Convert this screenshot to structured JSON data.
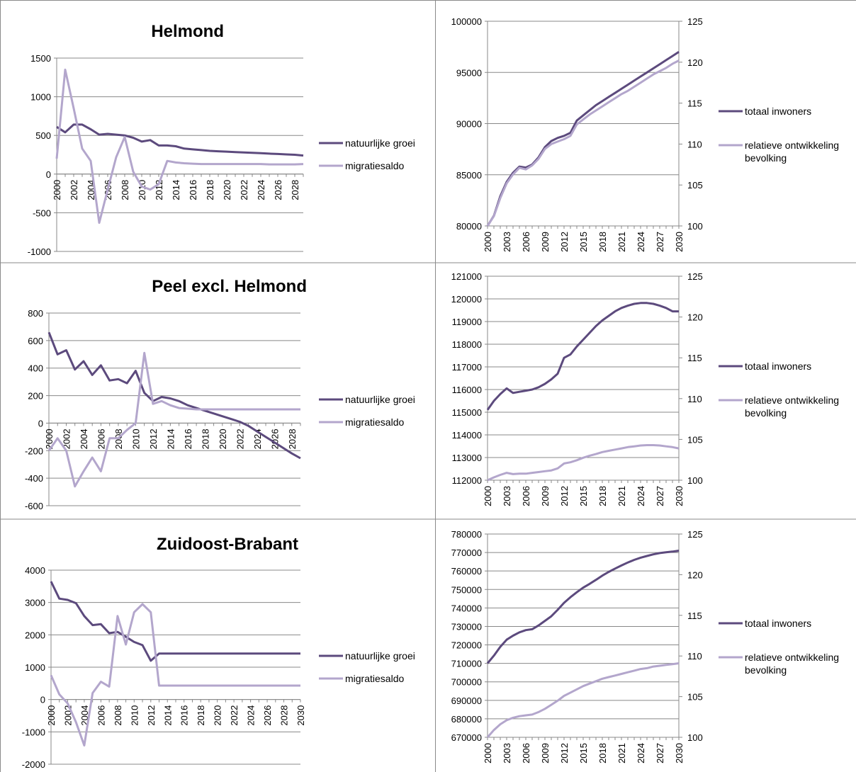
{
  "colors": {
    "dark": "#5c4a7d",
    "light": "#b3a6cc",
    "grid": "#888888",
    "border": "#8a8a8a"
  },
  "chart_data": [
    {
      "id": "helmond-growth",
      "type": "line",
      "title": "Helmond",
      "x": [
        2000,
        2001,
        2002,
        2003,
        2004,
        2005,
        2006,
        2007,
        2008,
        2009,
        2010,
        2011,
        2012,
        2013,
        2014,
        2015,
        2016,
        2017,
        2018,
        2019,
        2020,
        2021,
        2022,
        2023,
        2024,
        2025,
        2026,
        2027,
        2028,
        2029
      ],
      "xticks": [
        "2000",
        "2002",
        "2004",
        "2006",
        "2008",
        "2010",
        "2012",
        "2014",
        "2016",
        "2018",
        "2020",
        "2022",
        "2024",
        "2026",
        "2028"
      ],
      "ylim": [
        -1000,
        1500
      ],
      "yticks": [
        "-1000",
        "-500",
        "0",
        "500",
        "1000",
        "1500"
      ],
      "series": [
        {
          "name": "natuurlijke groei",
          "color": "dark",
          "values": [
            610,
            540,
            640,
            640,
            580,
            510,
            520,
            510,
            500,
            470,
            420,
            440,
            370,
            370,
            360,
            330,
            320,
            310,
            300,
            295,
            290,
            285,
            280,
            275,
            270,
            265,
            260,
            255,
            250,
            240
          ]
        },
        {
          "name": "migratiesaldo",
          "color": "light",
          "values": [
            200,
            1350,
            850,
            330,
            170,
            -630,
            -200,
            220,
            480,
            30,
            -160,
            -200,
            -130,
            170,
            150,
            140,
            135,
            130,
            130,
            130,
            130,
            130,
            130,
            130,
            130,
            125,
            125,
            125,
            125,
            130
          ]
        }
      ]
    },
    {
      "id": "helmond-pop",
      "type": "line",
      "x": [
        2000,
        2001,
        2002,
        2003,
        2004,
        2005,
        2006,
        2007,
        2008,
        2009,
        2010,
        2011,
        2012,
        2013,
        2014,
        2015,
        2016,
        2017,
        2018,
        2019,
        2020,
        2021,
        2022,
        2023,
        2024,
        2025,
        2026,
        2027,
        2028,
        2029,
        2030
      ],
      "xticks": [
        "2000",
        "2003",
        "2006",
        "2009",
        "2012",
        "2015",
        "2018",
        "2021",
        "2024",
        "2027",
        "2030"
      ],
      "ylim": [
        80000,
        100000
      ],
      "yticks": [
        "80000",
        "85000",
        "90000",
        "95000",
        "100000"
      ],
      "y2lim": [
        100,
        125
      ],
      "y2ticks": [
        "100",
        "105",
        "110",
        "115",
        "120",
        "125"
      ],
      "series": [
        {
          "name": "totaal inwoners",
          "axis": "left",
          "color": "dark",
          "values": [
            80000,
            81000,
            82900,
            84300,
            85200,
            85800,
            85700,
            86000,
            86700,
            87700,
            88300,
            88600,
            88800,
            89100,
            90300,
            90800,
            91300,
            91800,
            92200,
            92600,
            93000,
            93400,
            93800,
            94200,
            94600,
            95000,
            95400,
            95800,
            96200,
            96600,
            97000
          ]
        },
        {
          "name": "relatieve ontwikkeling bevolking",
          "axis": "right",
          "color": "light",
          "values": [
            100,
            101.2,
            103.4,
            105.2,
            106.3,
            107.1,
            106.9,
            107.4,
            108.2,
            109.4,
            110,
            110.3,
            110.6,
            111,
            112.4,
            113,
            113.6,
            114.1,
            114.6,
            115.1,
            115.6,
            116.1,
            116.5,
            117,
            117.5,
            118,
            118.5,
            118.9,
            119.3,
            119.8,
            120.2
          ]
        }
      ]
    },
    {
      "id": "peel-growth",
      "type": "line",
      "title": "Peel excl. Helmond",
      "x": [
        2000,
        2001,
        2002,
        2003,
        2004,
        2005,
        2006,
        2007,
        2008,
        2009,
        2010,
        2011,
        2012,
        2013,
        2014,
        2015,
        2016,
        2017,
        2018,
        2019,
        2020,
        2021,
        2022,
        2023,
        2024,
        2025,
        2026,
        2027,
        2028,
        2029
      ],
      "xticks": [
        "2000",
        "2002",
        "2004",
        "2006",
        "2008",
        "2010",
        "2012",
        "2014",
        "2016",
        "2018",
        "2020",
        "2022",
        "2024",
        "2026",
        "2028"
      ],
      "ylim": [
        -600,
        800
      ],
      "yticks": [
        "-600",
        "-400",
        "-200",
        "0",
        "200",
        "400",
        "600",
        "800"
      ],
      "series": [
        {
          "name": "natuurlijke groei",
          "color": "dark",
          "values": [
            660,
            500,
            530,
            390,
            450,
            350,
            420,
            310,
            320,
            290,
            380,
            220,
            160,
            190,
            180,
            160,
            130,
            110,
            90,
            70,
            50,
            30,
            10,
            -20,
            -60,
            -100,
            -140,
            -180,
            -220,
            -255
          ]
        },
        {
          "name": "migratiesaldo",
          "color": "light",
          "values": [
            -200,
            -110,
            -200,
            -460,
            -350,
            -250,
            -350,
            -110,
            -110,
            -50,
            0,
            510,
            140,
            160,
            130,
            110,
            105,
            100,
            100,
            100,
            100,
            100,
            100,
            100,
            100,
            100,
            100,
            100,
            100,
            100
          ]
        }
      ]
    },
    {
      "id": "peel-pop",
      "type": "line",
      "x": [
        2000,
        2001,
        2002,
        2003,
        2004,
        2005,
        2006,
        2007,
        2008,
        2009,
        2010,
        2011,
        2012,
        2013,
        2014,
        2015,
        2016,
        2017,
        2018,
        2019,
        2020,
        2021,
        2022,
        2023,
        2024,
        2025,
        2026,
        2027,
        2028,
        2029,
        2030
      ],
      "xticks": [
        "2000",
        "2003",
        "2006",
        "2009",
        "2012",
        "2015",
        "2018",
        "2021",
        "2024",
        "2027",
        "2030"
      ],
      "ylim": [
        112000,
        121000
      ],
      "yticks": [
        "112000",
        "113000",
        "114000",
        "115000",
        "116000",
        "117000",
        "118000",
        "119000",
        "120000",
        "121000"
      ],
      "y2lim": [
        100,
        125
      ],
      "y2ticks": [
        "100",
        "105",
        "110",
        "115",
        "120",
        "125"
      ],
      "series": [
        {
          "name": "totaal inwoners",
          "axis": "left",
          "color": "dark",
          "values": [
            115100,
            115500,
            115800,
            116050,
            115850,
            115900,
            115950,
            116000,
            116100,
            116250,
            116450,
            116700,
            117400,
            117550,
            117900,
            118200,
            118500,
            118800,
            119050,
            119250,
            119450,
            119600,
            119700,
            119780,
            119820,
            119820,
            119780,
            119700,
            119600,
            119450,
            119450
          ]
        },
        {
          "name": "relatieve ontwikkeling bevolking",
          "axis": "right",
          "color": "light",
          "values": [
            100,
            100.35,
            100.65,
            100.9,
            100.75,
            100.8,
            100.8,
            100.9,
            101,
            101.1,
            101.2,
            101.45,
            102.05,
            102.2,
            102.45,
            102.75,
            103,
            103.2,
            103.45,
            103.6,
            103.75,
            103.9,
            104.05,
            104.15,
            104.25,
            104.3,
            104.3,
            104.25,
            104.15,
            104.05,
            103.9
          ]
        }
      ]
    },
    {
      "id": "zob-growth",
      "type": "line",
      "title": "Zuidoost-Brabant",
      "x": [
        2000,
        2001,
        2002,
        2003,
        2004,
        2005,
        2006,
        2007,
        2008,
        2009,
        2010,
        2011,
        2012,
        2013,
        2014,
        2015,
        2016,
        2017,
        2018,
        2019,
        2020,
        2021,
        2022,
        2023,
        2024,
        2025,
        2026,
        2027,
        2028,
        2029,
        2030
      ],
      "xticks": [
        "2000",
        "2002",
        "2004",
        "2006",
        "2008",
        "2010",
        "2012",
        "2014",
        "2016",
        "2018",
        "2020",
        "2022",
        "2024",
        "2026",
        "2028",
        "2030"
      ],
      "ylim": [
        -2000,
        4000
      ],
      "yticks": [
        "-2000",
        "-1000",
        "0",
        "1000",
        "2000",
        "3000",
        "4000"
      ],
      "series": [
        {
          "name": "natuurlijke groei",
          "color": "dark",
          "values": [
            3650,
            3120,
            3080,
            2980,
            2580,
            2300,
            2330,
            2050,
            2090,
            1940,
            1780,
            1680,
            1200,
            1420,
            1420,
            1420,
            1420,
            1420,
            1420,
            1420,
            1420,
            1420,
            1420,
            1420,
            1420,
            1420,
            1420,
            1420,
            1420,
            1420,
            1420
          ]
        },
        {
          "name": "migratiesaldo",
          "color": "light",
          "values": [
            750,
            160,
            -120,
            -700,
            -1420,
            200,
            550,
            400,
            2580,
            1700,
            2700,
            2950,
            2700,
            430,
            430,
            430,
            430,
            430,
            430,
            430,
            430,
            430,
            430,
            430,
            430,
            430,
            430,
            430,
            430,
            430,
            430
          ]
        }
      ]
    },
    {
      "id": "zob-pop",
      "type": "line",
      "x": [
        2000,
        2001,
        2002,
        2003,
        2004,
        2005,
        2006,
        2007,
        2008,
        2009,
        2010,
        2011,
        2012,
        2013,
        2014,
        2015,
        2016,
        2017,
        2018,
        2019,
        2020,
        2021,
        2022,
        2023,
        2024,
        2025,
        2026,
        2027,
        2028,
        2029,
        2030
      ],
      "xticks": [
        "2000",
        "2003",
        "2006",
        "2009",
        "2012",
        "2015",
        "2018",
        "2021",
        "2024",
        "2027",
        "2030"
      ],
      "ylim": [
        670000,
        780000
      ],
      "yticks": [
        "670000",
        "680000",
        "690000",
        "700000",
        "710000",
        "720000",
        "730000",
        "740000",
        "750000",
        "760000",
        "770000",
        "780000"
      ],
      "y2lim": [
        100,
        125
      ],
      "y2ticks": [
        "100",
        "105",
        "110",
        "115",
        "120",
        "125"
      ],
      "series": [
        {
          "name": "totaal inwoners",
          "axis": "left",
          "color": "dark",
          "values": [
            710000,
            714200,
            719000,
            722800,
            725000,
            726800,
            728000,
            728500,
            730500,
            733000,
            735500,
            739000,
            742800,
            745800,
            748500,
            751000,
            753000,
            755200,
            757500,
            759500,
            761300,
            763000,
            764600,
            766000,
            767200,
            768100,
            769000,
            769700,
            770100,
            770500,
            771000
          ]
        },
        {
          "name": "relatieve ontwikkeling bevolking",
          "axis": "right",
          "color": "light",
          "values": [
            100,
            100.9,
            101.6,
            102.1,
            102.4,
            102.6,
            102.7,
            102.8,
            103.1,
            103.5,
            104,
            104.5,
            105.1,
            105.5,
            105.9,
            106.3,
            106.6,
            106.9,
            107.2,
            107.4,
            107.6,
            107.8,
            108,
            108.2,
            108.4,
            108.5,
            108.7,
            108.8,
            108.9,
            109,
            109.1
          ]
        }
      ]
    }
  ]
}
